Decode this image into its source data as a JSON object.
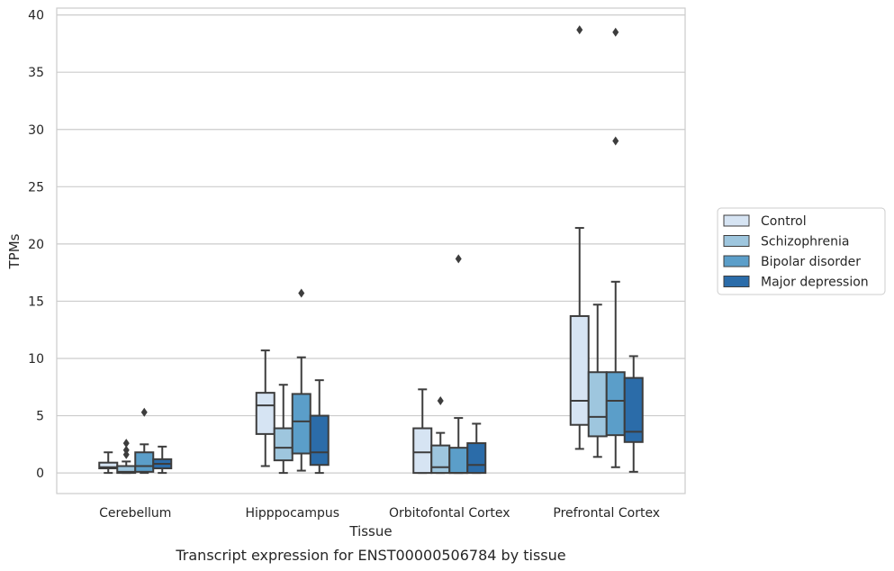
{
  "chart_data": {
    "type": "box",
    "caption": "Transcript expression for ENST00000506784 by tissue",
    "xlabel": "Tissue",
    "ylabel": "TPMs",
    "ylim": [
      -1.8,
      40.6
    ],
    "yticks": [
      0,
      5,
      10,
      15,
      20,
      25,
      30,
      35,
      40
    ],
    "grid": true,
    "legend_position": "right",
    "categories": [
      "Cerebellum",
      "Hipppocampus",
      "Orbitofontal Cortex",
      "Prefrontal Cortex"
    ],
    "series": [
      {
        "name": "Control",
        "color": "#d6e4f3",
        "boxes": [
          {
            "whisker_low": 0.0,
            "q1": 0.4,
            "median": 0.5,
            "q3": 0.9,
            "whisker_high": 1.8,
            "outliers": []
          },
          {
            "whisker_low": 0.6,
            "q1": 3.4,
            "median": 5.9,
            "q3": 7.0,
            "whisker_high": 10.7,
            "outliers": []
          },
          {
            "whisker_low": 0.0,
            "q1": 0.0,
            "median": 1.8,
            "q3": 3.9,
            "whisker_high": 7.3,
            "outliers": []
          },
          {
            "whisker_low": 2.1,
            "q1": 4.2,
            "median": 6.3,
            "q3": 13.7,
            "whisker_high": 21.4,
            "outliers": [
              38.7
            ]
          }
        ]
      },
      {
        "name": "Schizophrenia",
        "color": "#9ec6de",
        "boxes": [
          {
            "whisker_low": 0.0,
            "q1": 0.0,
            "median": 0.1,
            "q3": 0.6,
            "whisker_high": 1.0,
            "outliers": [
              1.6,
              2.0,
              2.6
            ]
          },
          {
            "whisker_low": 0.0,
            "q1": 1.1,
            "median": 2.2,
            "q3": 3.9,
            "whisker_high": 7.7,
            "outliers": []
          },
          {
            "whisker_low": 0.0,
            "q1": 0.0,
            "median": 0.5,
            "q3": 2.4,
            "whisker_high": 3.5,
            "outliers": [
              6.3
            ]
          },
          {
            "whisker_low": 1.4,
            "q1": 3.2,
            "median": 4.9,
            "q3": 8.8,
            "whisker_high": 14.7,
            "outliers": []
          }
        ]
      },
      {
        "name": "Bipolar disorder",
        "color": "#5b9ec9",
        "boxes": [
          {
            "whisker_low": 0.0,
            "q1": 0.1,
            "median": 0.6,
            "q3": 1.8,
            "whisker_high": 2.5,
            "outliers": [
              5.3
            ]
          },
          {
            "whisker_low": 0.2,
            "q1": 1.7,
            "median": 4.5,
            "q3": 6.9,
            "whisker_high": 10.1,
            "outliers": [
              15.7
            ]
          },
          {
            "whisker_low": 0.0,
            "q1": 0.0,
            "median": 0.0,
            "q3": 2.2,
            "whisker_high": 4.8,
            "outliers": [
              18.7
            ]
          },
          {
            "whisker_low": 0.5,
            "q1": 3.3,
            "median": 6.3,
            "q3": 8.8,
            "whisker_high": 16.7,
            "outliers": [
              29.0,
              38.5
            ]
          }
        ]
      },
      {
        "name": "Major depression",
        "color": "#2b6ca9",
        "boxes": [
          {
            "whisker_low": 0.0,
            "q1": 0.4,
            "median": 0.8,
            "q3": 1.2,
            "whisker_high": 2.3,
            "outliers": []
          },
          {
            "whisker_low": 0.0,
            "q1": 0.7,
            "median": 1.8,
            "q3": 5.0,
            "whisker_high": 8.1,
            "outliers": []
          },
          {
            "whisker_low": 0.0,
            "q1": 0.0,
            "median": 0.7,
            "q3": 2.6,
            "whisker_high": 4.3,
            "outliers": []
          },
          {
            "whisker_low": 0.1,
            "q1": 2.7,
            "median": 3.6,
            "q3": 8.3,
            "whisker_high": 10.2,
            "outliers": []
          }
        ]
      }
    ]
  }
}
